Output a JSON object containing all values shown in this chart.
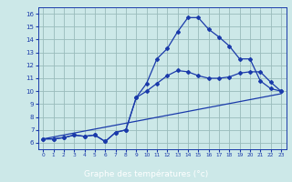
{
  "xlabel": "Graphe des températures (°c)",
  "bg_color": "#cce8e8",
  "grid_color": "#99bbbb",
  "line_color": "#1a3aaa",
  "label_bar_color": "#1a3aaa",
  "label_text_color": "#ffffff",
  "ylim": [
    5.5,
    16.5
  ],
  "xlim": [
    -0.5,
    23.5
  ],
  "yticks": [
    6,
    7,
    8,
    9,
    10,
    11,
    12,
    13,
    14,
    15,
    16
  ],
  "xticks": [
    0,
    1,
    2,
    3,
    4,
    5,
    6,
    7,
    8,
    9,
    10,
    11,
    12,
    13,
    14,
    15,
    16,
    17,
    18,
    19,
    20,
    21,
    22,
    23
  ],
  "line1_x": [
    0,
    1,
    2,
    3,
    4,
    5,
    6,
    7,
    8,
    9,
    10,
    11,
    12,
    13,
    14,
    15,
    16,
    17,
    18,
    19,
    20,
    21,
    22,
    23
  ],
  "line1_y": [
    6.3,
    6.3,
    6.4,
    6.6,
    6.5,
    6.6,
    6.1,
    6.8,
    7.0,
    9.5,
    10.6,
    12.5,
    13.3,
    14.6,
    15.7,
    15.7,
    14.8,
    14.2,
    13.5,
    12.5,
    12.5,
    10.8,
    10.2,
    10.0
  ],
  "line2_x": [
    0,
    1,
    2,
    3,
    4,
    5,
    6,
    7,
    8,
    9,
    10,
    11,
    12,
    13,
    14,
    15,
    16,
    17,
    18,
    19,
    20,
    21,
    22,
    23
  ],
  "line2_y": [
    6.3,
    6.3,
    6.4,
    6.6,
    6.5,
    6.6,
    6.1,
    6.8,
    7.0,
    9.5,
    10.0,
    10.6,
    11.2,
    11.6,
    11.5,
    11.2,
    11.0,
    11.0,
    11.1,
    11.4,
    11.5,
    11.5,
    10.7,
    10.0
  ],
  "line3_x": [
    0,
    23
  ],
  "line3_y": [
    6.3,
    9.8
  ]
}
